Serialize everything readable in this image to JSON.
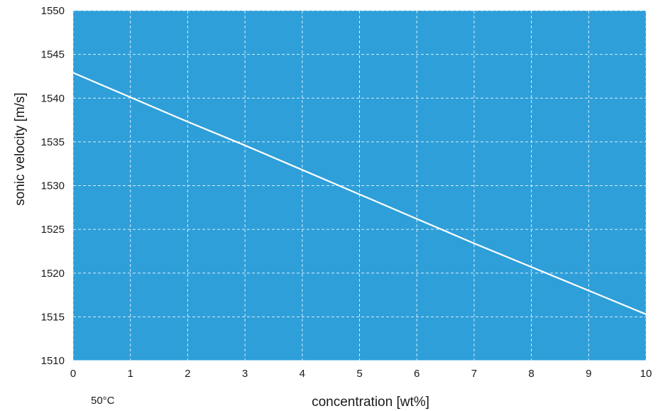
{
  "chart_data": {
    "type": "line",
    "xlabel": "concentration [wt%]",
    "ylabel": "sonic velocity [m/s]",
    "annotation": "50°C",
    "xlim": [
      0,
      10
    ],
    "ylim": [
      1510,
      1550
    ],
    "x_ticks": [
      "0",
      "1",
      "2",
      "3",
      "4",
      "5",
      "6",
      "7",
      "8",
      "9",
      "10"
    ],
    "y_ticks": [
      "1510",
      "1515",
      "1520",
      "1525",
      "1530",
      "1535",
      "1540",
      "1545",
      "1550"
    ],
    "grid": true,
    "legend": "none",
    "colors": {
      "plot_background": "#2e9fd9",
      "line": "#ffffff",
      "grid": "#d8eef9"
    },
    "series": [
      {
        "x": [
          0,
          1,
          2,
          3,
          4,
          5,
          6,
          7,
          8,
          9,
          10
        ],
        "values": [
          1542.9,
          1540.1,
          1537.3,
          1534.6,
          1531.8,
          1529.0,
          1526.2,
          1523.4,
          1520.7,
          1518.0,
          1515.3
        ]
      }
    ]
  }
}
